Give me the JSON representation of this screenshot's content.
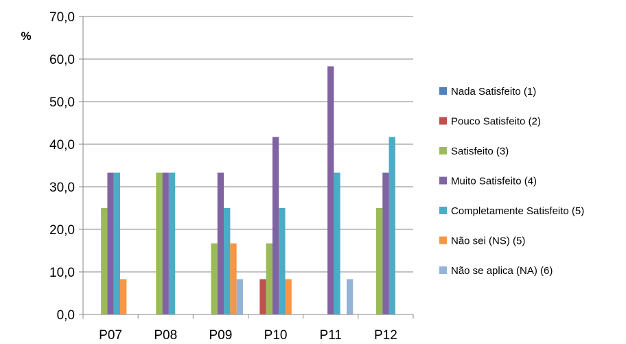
{
  "chart_data": {
    "type": "bar",
    "ylabel": "%",
    "ylim": [
      0,
      70
    ],
    "yticks": [
      "0,0",
      "10,0",
      "20,0",
      "30,0",
      "40,0",
      "50,0",
      "60,0",
      "70,0"
    ],
    "grid": true,
    "legend_position": "right",
    "categories": [
      "P07",
      "P08",
      "P09",
      "P10",
      "P11",
      "P12"
    ],
    "series": [
      {
        "name": "Nada Satisfeito (1)",
        "color": "#4F81BD",
        "values": [
          0,
          0,
          0,
          0,
          0,
          0
        ]
      },
      {
        "name": "Pouco Satisfeito (2)",
        "color": "#C0504D",
        "values": [
          0,
          0,
          0,
          8.3,
          0,
          0
        ]
      },
      {
        "name": "Satisfeito (3)",
        "color": "#9BBB59",
        "values": [
          25.0,
          33.3,
          16.7,
          16.7,
          0,
          25.0
        ]
      },
      {
        "name": "Muito Satisfeito (4)",
        "color": "#8064A2",
        "values": [
          33.3,
          33.3,
          33.3,
          41.7,
          58.3,
          33.3
        ]
      },
      {
        "name": "Completamente Satisfeito (5)",
        "color": "#4BACC6",
        "values": [
          33.3,
          33.3,
          25.0,
          25.0,
          33.3,
          41.7
        ]
      },
      {
        "name": "Não sei (NS) (5)",
        "color": "#F79646",
        "values": [
          8.3,
          0,
          16.7,
          8.3,
          0,
          0
        ]
      },
      {
        "name": "Não se aplica (NA) (6)",
        "color": "#95B3D7",
        "values": [
          0,
          0,
          8.3,
          0,
          8.3,
          0
        ]
      }
    ]
  }
}
